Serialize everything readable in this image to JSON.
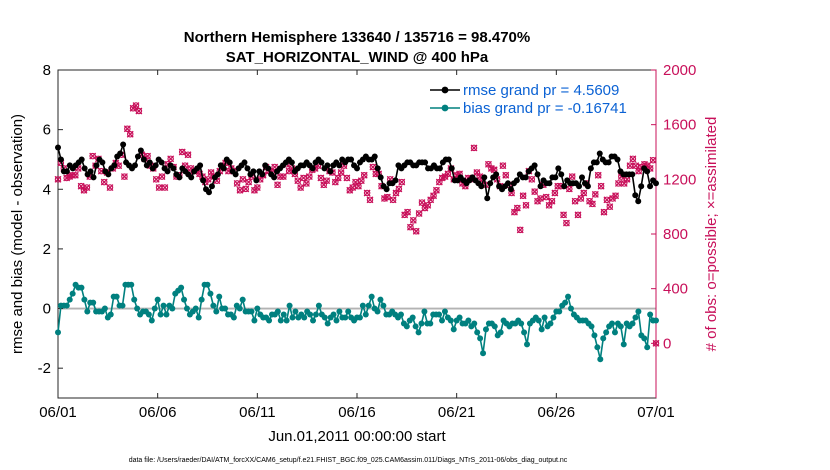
{
  "title_line1": "Northern Hemisphere 133640 / 135716 = 98.470%",
  "title_line2": "SAT_HORIZONTAL_WIND @ 400 hPa",
  "footnote": "data file: /Users/raeder/DAI/ATM_forcXX/CAM6_setup/f.e21.FHIST_BGC.f09_025.CAM6assim.011/Diags_NTrS_2011-06/obs_diag_output.nc",
  "colors": {
    "rmse": "#000000",
    "bias": "#00807f",
    "obs": "#c8105a",
    "legend_text": "#0b62d4",
    "zero_line": "#b3b3b3"
  },
  "chart_data": {
    "type": "line",
    "xlabel": "Jun.01,2011 00:00:00 start",
    "ylabel": "rmse and bias (model - observation)",
    "ylabel_right": "# of obs: o=possible; ×=assimilated",
    "x_tick_labels": [
      "06/01",
      "06/06",
      "06/11",
      "06/16",
      "06/21",
      "06/26",
      "07/01"
    ],
    "x_ticks_days": [
      0,
      5,
      10,
      15,
      20,
      25,
      30
    ],
    "ylim": [
      -3,
      8
    ],
    "y_ticks": [
      -2,
      0,
      2,
      4,
      6,
      8
    ],
    "ylim_right": [
      -400,
      2000
    ],
    "y_ticks_right": [
      0,
      400,
      800,
      1200,
      1600,
      2000
    ],
    "grid": false,
    "legend_position": "top-right",
    "legend": [
      {
        "label": "rmse grand pr = 4.5609"
      },
      {
        "label": "bias grand pr = -0.16741"
      }
    ],
    "series": [
      {
        "name": "rmse grand pr = 4.5609",
        "color": "#000000",
        "marker": "circle",
        "values": [
          5.4,
          5.0,
          4.6,
          4.6,
          4.8,
          4.7,
          4.8,
          4.9,
          5.0,
          4.7,
          4.5,
          4.6,
          4.4,
          4.8,
          5.0,
          4.9,
          4.6,
          4.5,
          4.7,
          4.8,
          5.1,
          5.2,
          5.5,
          4.9,
          4.8,
          4.7,
          4.8,
          5.1,
          5.3,
          5.0,
          4.8,
          4.9,
          4.7,
          4.8,
          5.0,
          4.9,
          4.7,
          4.6,
          4.8,
          4.7,
          4.5,
          4.4,
          4.7,
          4.6,
          4.5,
          4.4,
          4.6,
          4.7,
          4.8,
          4.3,
          4.0,
          3.9,
          4.1,
          4.4,
          4.5,
          4.8,
          4.7,
          5.0,
          4.9,
          4.6,
          4.5,
          4.7,
          4.8,
          4.9,
          4.7,
          4.5,
          4.6,
          4.3,
          4.6,
          4.5,
          4.8,
          4.7,
          4.5,
          4.4,
          4.6,
          4.7,
          4.8,
          4.9,
          5.0,
          4.9,
          4.6,
          4.7,
          4.8,
          4.8,
          4.9,
          4.8,
          4.7,
          4.9,
          5.0,
          4.9,
          4.7,
          4.8,
          4.6,
          4.8,
          4.9,
          4.8,
          5.0,
          4.9,
          5.0,
          5.0,
          4.8,
          4.7,
          4.9,
          5.0,
          5.1,
          5.0,
          5.0,
          5.1,
          4.7,
          4.4,
          4.1,
          4.0,
          4.2,
          4.2,
          4.3,
          4.8,
          4.7,
          4.8,
          4.9,
          4.9,
          4.8,
          4.8,
          4.9,
          4.9,
          4.9,
          4.7,
          4.7,
          4.8,
          4.7,
          4.7,
          4.9,
          5.0,
          5.0,
          4.7,
          4.3,
          4.3,
          4.4,
          4.3,
          4.2,
          4.3,
          4.4,
          4.3,
          4.2,
          4.1,
          4.4,
          3.7,
          4.2,
          4.4,
          4.5,
          4.1,
          4.0,
          4.1,
          4.2,
          4.0,
          4.2,
          4.3,
          4.5,
          4.4,
          4.4,
          4.6,
          4.7,
          4.8,
          4.5,
          4.1,
          4.3,
          4.2,
          4.2,
          4.4,
          4.4,
          4.7,
          4.5,
          4.1,
          4.3,
          4.2,
          4.2,
          4.2,
          4.1,
          4.4,
          4.2,
          4.1,
          4.7,
          4.9,
          4.9,
          5.2,
          5.0,
          4.9,
          4.9,
          5.1,
          5.1,
          5.0,
          4.6,
          4.5,
          4.5,
          4.5,
          4.5,
          3.8,
          3.6,
          4.1,
          4.7,
          4.6,
          4.1,
          4.3,
          4.2
        ]
      },
      {
        "name": "bias grand pr = -0.16741",
        "color": "#00807f",
        "marker": "circle",
        "values": [
          -0.8,
          0.1,
          0.1,
          0.1,
          0.3,
          0.5,
          0.8,
          0.7,
          0.7,
          0.3,
          -0.1,
          0.2,
          0.2,
          -0.1,
          -0.1,
          -0.1,
          0.0,
          -0.3,
          -0.2,
          0.4,
          0.4,
          0.1,
          0.1,
          0.8,
          0.8,
          0.8,
          0.3,
          0.0,
          -0.2,
          -0.1,
          -0.1,
          -0.2,
          -0.4,
          0.0,
          0.3,
          -0.2,
          0.1,
          -0.2,
          0.1,
          0.0,
          0.5,
          0.6,
          0.7,
          0.3,
          0.0,
          -0.2,
          -0.1,
          0.0,
          -0.3,
          0.3,
          0.8,
          0.8,
          0.5,
          0.1,
          -0.1,
          0.4,
          0.0,
          0.0,
          -0.2,
          -0.2,
          -0.3,
          0.1,
          0.0,
          0.3,
          -0.1,
          -0.1,
          -0.1,
          -0.4,
          0.0,
          -0.2,
          -0.3,
          -0.3,
          -0.4,
          -0.2,
          -0.2,
          -0.1,
          -0.4,
          -0.2,
          -0.4,
          0.1,
          -0.3,
          -0.1,
          -0.3,
          -0.2,
          -0.3,
          -0.1,
          -0.2,
          -0.4,
          -0.2,
          0.1,
          -0.2,
          -0.3,
          -0.5,
          -0.3,
          -0.2,
          -0.4,
          -0.1,
          -0.3,
          -0.3,
          -0.1,
          -0.3,
          -0.4,
          -0.3,
          -0.3,
          0.1,
          -0.2,
          0.1,
          0.4,
          0.0,
          -0.1,
          0.3,
          0.1,
          -0.2,
          -0.2,
          -0.1,
          -0.2,
          -0.3,
          -0.2,
          -0.5,
          -0.6,
          -0.4,
          -0.3,
          -0.6,
          -0.8,
          -0.5,
          -0.1,
          -0.5,
          -0.5,
          -0.2,
          -0.2,
          -0.2,
          -0.4,
          -0.1,
          -0.3,
          -0.4,
          -0.7,
          -0.4,
          -0.3,
          -0.5,
          -0.5,
          -0.4,
          -0.6,
          -0.5,
          -0.8,
          -1.0,
          -1.5,
          -0.7,
          -0.5,
          -0.5,
          -0.6,
          -0.9,
          -0.8,
          -0.4,
          -0.5,
          -0.6,
          -0.5,
          -0.5,
          -0.4,
          -0.5,
          -0.8,
          -1.2,
          -0.5,
          -0.4,
          -0.3,
          -0.4,
          -0.7,
          -0.3,
          -0.6,
          -0.5,
          -0.3,
          -0.1,
          -0.1,
          0.1,
          0.2,
          0.4,
          0.0,
          -0.2,
          -0.3,
          -0.4,
          -0.4,
          -0.4,
          -0.5,
          -0.6,
          -0.9,
          -1.3,
          -1.7,
          -1.0,
          -0.8,
          -0.6,
          -0.5,
          -0.8,
          -0.5,
          -0.6,
          -1.2,
          -0.5,
          -0.6,
          -0.5,
          -0.3,
          -0.1,
          -0.9,
          -1.0,
          -1.3,
          -0.2,
          -0.4,
          -0.4
        ]
      },
      {
        "name": "",
        "color": "#c8105a",
        "axis": "right",
        "marker": "o and ×",
        "values": [
          1200,
          1320,
          1280,
          1210,
          1220,
          1230,
          1230,
          1280,
          1150,
          1120,
          1140,
          1220,
          1370,
          1300,
          1350,
          1260,
          1180,
          1250,
          1140,
          1280,
          1320,
          1300,
          1380,
          1220,
          1570,
          1530,
          1720,
          1740,
          1700,
          1380,
          1350,
          1370,
          1300,
          1280,
          1200,
          1140,
          1220,
          1140,
          1310,
          1350,
          1290,
          1220,
          1230,
          1400,
          1300,
          1380,
          1280,
          1260,
          1260,
          1240,
          1220,
          1180,
          1200,
          1250,
          1220,
          1190,
          1260,
          1300,
          1320,
          1260,
          1280,
          1260,
          1170,
          1120,
          1200,
          1130,
          1180,
          1220,
          1120,
          1140,
          1200,
          1230,
          1290,
          1260,
          1250,
          1290,
          1160,
          1220,
          1220,
          1310,
          1260,
          1280,
          1240,
          1190,
          1140,
          1210,
          1170,
          1220,
          1270,
          1280,
          1300,
          1210,
          1160,
          1190,
          1260,
          1250,
          1180,
          1210,
          1250,
          1300,
          1210,
          1120,
          1140,
          1180,
          1150,
          1190,
          1230,
          1100,
          1050,
          1290,
          1240,
          1240,
          1150,
          1060,
          1070,
          1200,
          1050,
          1100,
          1130,
          1180,
          940,
          960,
          850,
          900,
          820,
          950,
          1030,
          990,
          1010,
          1050,
          1080,
          1120,
          1180,
          1210,
          1220,
          1240,
          1280,
          1200,
          1230,
          1240,
          1170,
          1150,
          1210,
          1200,
          1430,
          1250,
          1220,
          1200,
          1160,
          1310,
          1280,
          1270,
          1200,
          1150,
          1300,
          1230,
          1160,
          1100,
          960,
          990,
          830,
          1080,
          1010,
          1260,
          1200,
          1110,
          1040,
          1060,
          1160,
          1070,
          1010,
          1040,
          1100,
          1150,
          1150,
          940,
          880,
          1130,
          1220,
          1040,
          940,
          1060,
          1100,
          1170,
          1040,
          1020,
          1090,
          1230,
          1150,
          960,
          1050,
          1000,
          1060,
          1080,
          1170,
          1220,
          1170,
          1200,
          1300,
          1350,
          1300,
          1260,
          1290,
          1310,
          1300,
          1280,
          1340,
          0
        ]
      }
    ]
  }
}
